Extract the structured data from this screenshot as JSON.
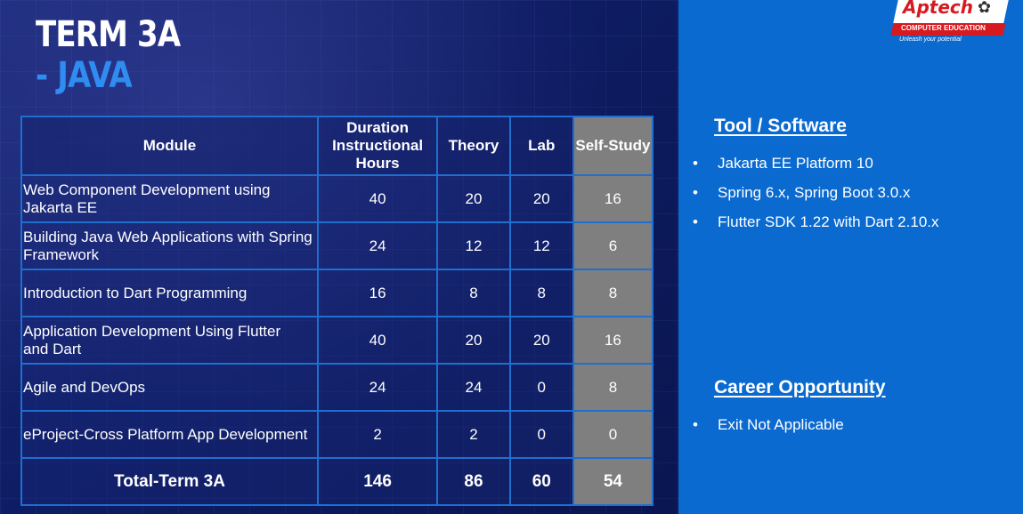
{
  "title": {
    "line1": "TERM 3A",
    "line2": "- JAVA"
  },
  "table": {
    "headers": {
      "module": "Module",
      "duration": [
        "Duration",
        "Instructional",
        "Hours"
      ],
      "theory": "Theory",
      "lab": "Lab",
      "self_study": "Self-Study"
    },
    "rows": [
      {
        "module": [
          "Web Component Development using",
          "Jakarta EE"
        ],
        "duration": "40",
        "theory": "20",
        "lab": "20",
        "self_study": "16"
      },
      {
        "module": [
          "Building Java Web Applications with Spring",
          "Framework"
        ],
        "duration": "24",
        "theory": "12",
        "lab": "12",
        "self_study": "6"
      },
      {
        "module": [
          "Introduction to Dart Programming"
        ],
        "duration": "16",
        "theory": "8",
        "lab": "8",
        "self_study": "8"
      },
      {
        "module": [
          "Application Development Using Flutter",
          "and Dart"
        ],
        "duration": "40",
        "theory": "20",
        "lab": "20",
        "self_study": "16"
      },
      {
        "module": [
          "Agile and DevOps"
        ],
        "duration": "24",
        "theory": "24",
        "lab": "0",
        "self_study": "8"
      },
      {
        "module": [
          "eProject-Cross Platform App Development"
        ],
        "duration": "2",
        "theory": "2",
        "lab": "0",
        "self_study": "0"
      }
    ],
    "total": {
      "label": "Total-Term 3A",
      "duration": "146",
      "theory": "86",
      "lab": "60",
      "self_study": "54"
    }
  },
  "logo": {
    "name": "Aptech",
    "subtitle": "COMPUTER EDUCATION",
    "tagline": "Unleash your potential",
    "icon": "paw-icon"
  },
  "tools": {
    "heading": "Tool / Software",
    "items": [
      "Jakarta EE  Platform 10",
      "Spring 6.x, Spring Boot 3.0.x",
      "Flutter SDK 1.22 with Dart 2.10.x"
    ]
  },
  "career": {
    "heading": "Career Opportunity",
    "items": [
      "Exit Not Applicable"
    ]
  },
  "bullet_char": "•",
  "colors": {
    "accent": "#2f8cf0",
    "right_panel": "#0a6ad0",
    "self_study_bg": "#7f7f7f",
    "table_border": "#1e6fd0",
    "brand_red": "#d71920"
  }
}
